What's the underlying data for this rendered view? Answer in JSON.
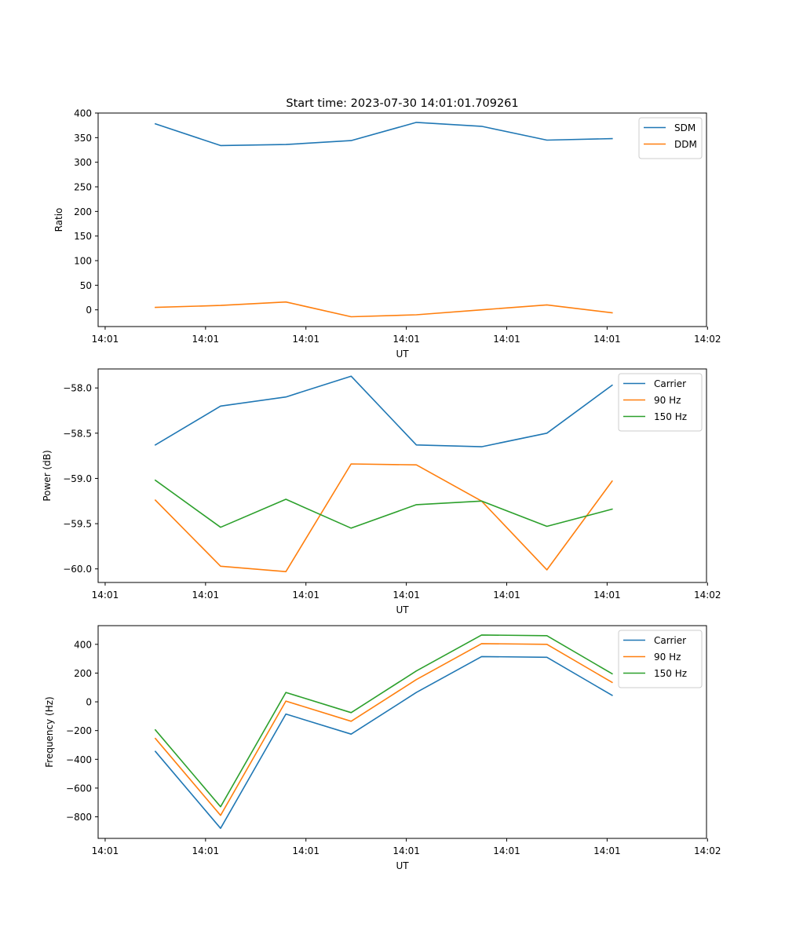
{
  "figure_title": "Start time: 2023-07-30 14:01:01.709261",
  "chart_data": [
    {
      "type": "line",
      "title": "Start time: 2023-07-30 14:01:01.709261",
      "xlabel": "UT",
      "ylabel": "Ratio",
      "x": [
        1.5,
        2.15,
        2.8,
        3.45,
        4.1,
        4.75,
        5.4,
        6.05
      ],
      "xlim": [
        0.93,
        6.99
      ],
      "xticks": [
        1,
        2,
        3,
        4,
        5,
        6,
        7
      ],
      "xtick_labels": [
        "14:01",
        "14:01",
        "14:01",
        "14:01",
        "14:01",
        "14:01",
        "14:02"
      ],
      "ylim": [
        -34,
        400
      ],
      "yticks": [
        0,
        50,
        100,
        150,
        200,
        250,
        300,
        350,
        400
      ],
      "ytick_labels": [
        "0",
        "50",
        "100",
        "150",
        "200",
        "250",
        "300",
        "350",
        "400"
      ],
      "legend_position": "top-right",
      "series": [
        {
          "name": "SDM",
          "color": "#1f77b4",
          "values": [
            378,
            334,
            336,
            344,
            381,
            373,
            345,
            348
          ]
        },
        {
          "name": "DDM",
          "color": "#ff7f0e",
          "values": [
            5,
            9,
            16,
            -14,
            -10,
            0,
            10,
            -6
          ]
        }
      ]
    },
    {
      "type": "line",
      "xlabel": "UT",
      "ylabel": "Power (dB)",
      "x": [
        1.5,
        2.15,
        2.8,
        3.45,
        4.1,
        4.75,
        5.4,
        6.05
      ],
      "xlim": [
        0.93,
        6.99
      ],
      "xticks": [
        1,
        2,
        3,
        4,
        5,
        6,
        7
      ],
      "xtick_labels": [
        "14:01",
        "14:01",
        "14:01",
        "14:01",
        "14:01",
        "14:01",
        "14:02"
      ],
      "ylim": [
        -60.15,
        -57.79
      ],
      "yticks": [
        -60.0,
        -59.5,
        -59.0,
        -58.5,
        -58.0
      ],
      "ytick_labels": [
        "−60.0",
        "−59.5",
        "−59.0",
        "−58.5",
        "−58.0"
      ],
      "legend_position": "top-right",
      "series": [
        {
          "name": "Carrier",
          "color": "#1f77b4",
          "values": [
            -58.63,
            -58.2,
            -58.1,
            -57.87,
            -58.63,
            -58.65,
            -58.5,
            -57.97
          ]
        },
        {
          "name": "90 Hz",
          "color": "#ff7f0e",
          "values": [
            -59.24,
            -59.97,
            -60.03,
            -58.84,
            -58.85,
            -59.25,
            -60.01,
            -59.03
          ]
        },
        {
          "name": "150 Hz",
          "color": "#2ca02c",
          "values": [
            -59.02,
            -59.54,
            -59.23,
            -59.55,
            -59.29,
            -59.25,
            -59.53,
            -59.34
          ]
        }
      ]
    },
    {
      "type": "line",
      "xlabel": "UT",
      "ylabel": "Frequency (Hz)",
      "x": [
        1.5,
        2.15,
        2.8,
        3.45,
        4.1,
        4.75,
        5.4,
        6.05
      ],
      "xlim": [
        0.93,
        6.99
      ],
      "xticks": [
        1,
        2,
        3,
        4,
        5,
        6,
        7
      ],
      "xtick_labels": [
        "14:01",
        "14:01",
        "14:01",
        "14:01",
        "14:01",
        "14:01",
        "14:02"
      ],
      "ylim": [
        -950,
        530
      ],
      "yticks": [
        -800,
        -600,
        -400,
        -200,
        0,
        200,
        400
      ],
      "ytick_labels": [
        "−800",
        "−600",
        "−400",
        "−200",
        "0",
        "200",
        "400"
      ],
      "legend_position": "top-right",
      "series": [
        {
          "name": "Carrier",
          "color": "#1f77b4",
          "values": [
            -345,
            -880,
            -85,
            -225,
            65,
            315,
            310,
            45
          ]
        },
        {
          "name": "90 Hz",
          "color": "#ff7f0e",
          "values": [
            -255,
            -790,
            5,
            -135,
            155,
            405,
            400,
            135
          ]
        },
        {
          "name": "150 Hz",
          "color": "#2ca02c",
          "values": [
            -195,
            -730,
            65,
            -75,
            215,
            465,
            460,
            195
          ]
        }
      ]
    }
  ]
}
